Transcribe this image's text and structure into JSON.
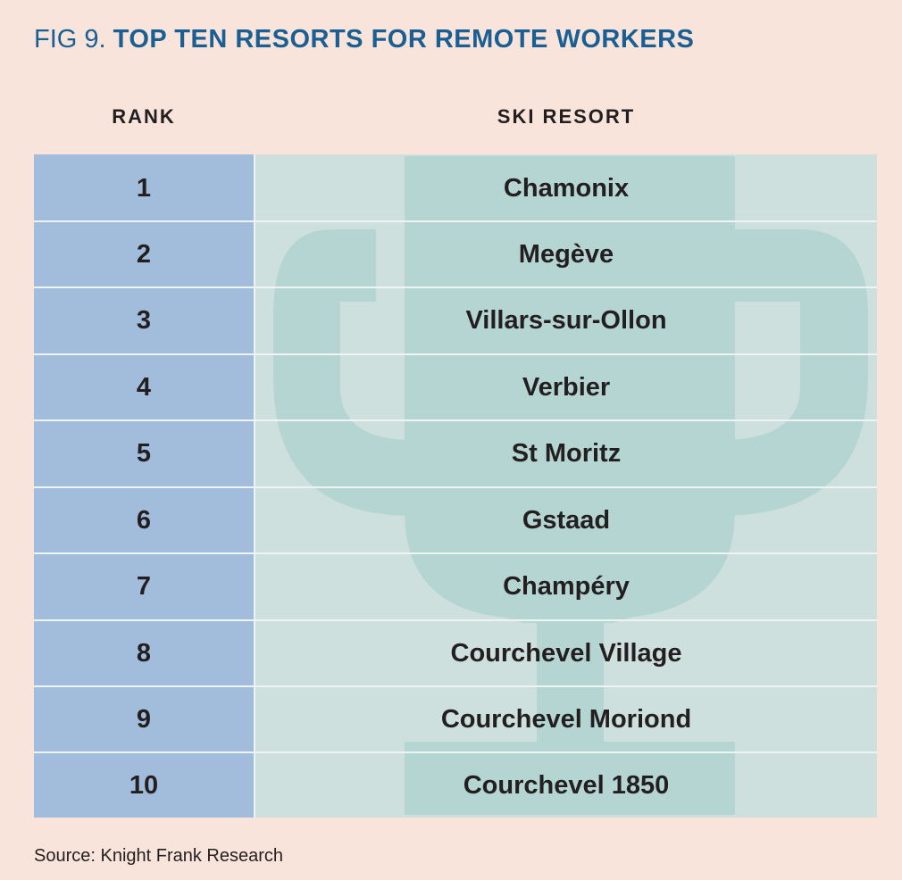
{
  "title": {
    "prefix": "FIG 9.",
    "main": "TOP TEN RESORTS FOR REMOTE WORKERS"
  },
  "columns": {
    "rank": "RANK",
    "resort": "SKI RESORT"
  },
  "rows": [
    {
      "rank": "1",
      "resort": "Chamonix"
    },
    {
      "rank": "2",
      "resort": "Megève"
    },
    {
      "rank": "3",
      "resort": "Villars-sur-Ollon"
    },
    {
      "rank": "4",
      "resort": "Verbier"
    },
    {
      "rank": "5",
      "resort": "St Moritz"
    },
    {
      "rank": "6",
      "resort": "Gstaad"
    },
    {
      "rank": "7",
      "resort": "Champéry"
    },
    {
      "rank": "8",
      "resort": "Courchevel Village"
    },
    {
      "rank": "9",
      "resort": "Courchevel Moriond"
    },
    {
      "rank": "10",
      "resort": "Courchevel 1850"
    }
  ],
  "source": "Source: Knight Frank Research",
  "colors": {
    "background": "#f9e4db",
    "title": "#1a5f93",
    "rank_column": "#a2bddb",
    "resort_column": "#cde0dd",
    "trophy": "#b5d5d2"
  },
  "icons": {
    "watermark": "trophy-icon"
  }
}
